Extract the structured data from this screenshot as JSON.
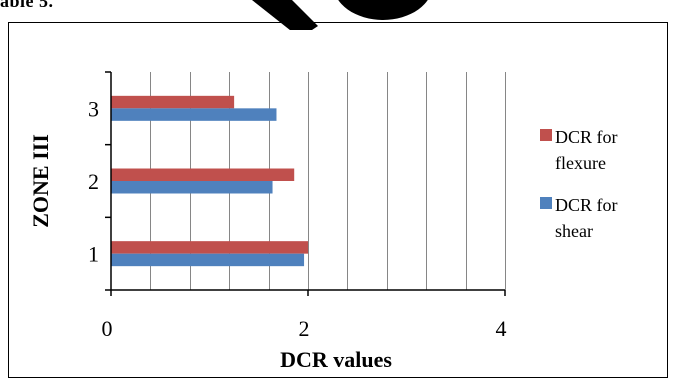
{
  "page": {
    "top_text": "able 5."
  },
  "colors": {
    "flexure": "#C0504D",
    "shear": "#4F81BD",
    "grid": "#868686"
  },
  "chart_data": {
    "type": "bar",
    "orientation": "horizontal",
    "categories": [
      "1",
      "2",
      "3"
    ],
    "series": [
      {
        "name": "DCR for shear",
        "values": [
          1.96,
          1.64,
          1.68
        ],
        "color": "#4F81BD"
      },
      {
        "name": "DCR for flexure",
        "values": [
          2.0,
          1.86,
          1.25
        ],
        "color": "#C0504D"
      }
    ],
    "xlabel": "DCR values",
    "ylabel": "ZONE III",
    "xlim": [
      0,
      4
    ],
    "x_ticks": [
      "0",
      "2",
      "4"
    ],
    "grid": true,
    "legend_position": "right"
  }
}
